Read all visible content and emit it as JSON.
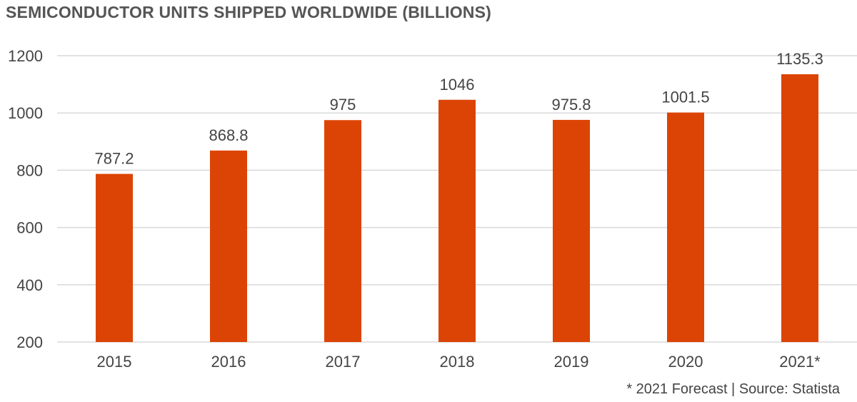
{
  "chart_data": {
    "type": "bar",
    "title": "SEMICONDUCTOR UNITS SHIPPED WORLDWIDE (BILLIONS)",
    "categories": [
      "2015",
      "2016",
      "2017",
      "2018",
      "2019",
      "2020",
      "2021*"
    ],
    "values": [
      787.2,
      868.8,
      975,
      1046,
      975.8,
      1001.5,
      1135.3
    ],
    "data_labels": [
      "787.2",
      "868.8",
      "975",
      "1046",
      "975.8",
      "1001.5",
      "1135.3"
    ],
    "yticks": [
      200,
      400,
      600,
      800,
      1000,
      1200
    ],
    "ylim": [
      200,
      1200
    ],
    "grid": true,
    "bar_color": "#dc4405",
    "grid_color": "#d9d9d9",
    "footnote": "* 2021 Forecast  |  Source: Statista"
  }
}
